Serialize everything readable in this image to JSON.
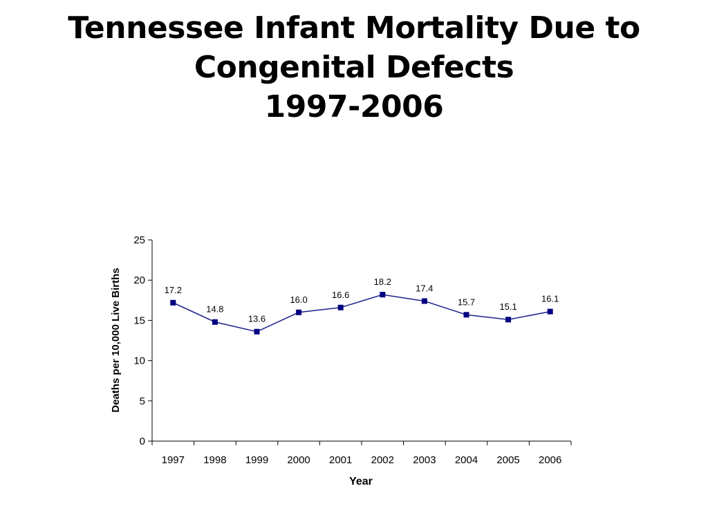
{
  "slide": {
    "title_lines": [
      "Tennessee Infant Mortality Due to",
      "Congenital Defects",
      "1997-2006"
    ]
  },
  "chart_data": {
    "type": "line",
    "title": "",
    "xlabel": "Year",
    "ylabel": "Deaths per 10,000 Live Births",
    "categories": [
      "1997",
      "1998",
      "1999",
      "2000",
      "2001",
      "2002",
      "2003",
      "2004",
      "2005",
      "2006"
    ],
    "values": [
      17.2,
      14.8,
      13.6,
      16.0,
      16.6,
      18.2,
      17.4,
      15.7,
      15.1,
      16.1
    ],
    "data_labels": [
      "17.2",
      "14.8",
      "13.6",
      "16.0",
      "16.6",
      "18.2",
      "17.4",
      "15.7",
      "15.1",
      "16.1"
    ],
    "ylim": [
      0,
      25
    ],
    "yticks": [
      0,
      5,
      10,
      15,
      20,
      25
    ],
    "grid": false,
    "legend": "none",
    "line_color": "#1f1f8c",
    "marker_color": "#000080",
    "marker": "square"
  }
}
